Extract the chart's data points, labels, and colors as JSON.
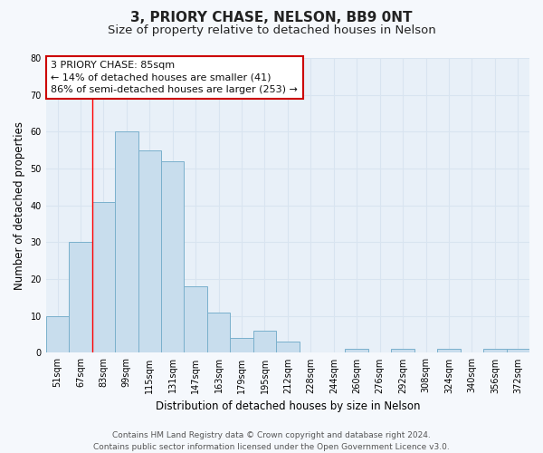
{
  "title": "3, PRIORY CHASE, NELSON, BB9 0NT",
  "subtitle": "Size of property relative to detached houses in Nelson",
  "xlabel": "Distribution of detached houses by size in Nelson",
  "ylabel": "Number of detached properties",
  "bar_labels": [
    "51sqm",
    "67sqm",
    "83sqm",
    "99sqm",
    "115sqm",
    "131sqm",
    "147sqm",
    "163sqm",
    "179sqm",
    "195sqm",
    "212sqm",
    "228sqm",
    "244sqm",
    "260sqm",
    "276sqm",
    "292sqm",
    "308sqm",
    "324sqm",
    "340sqm",
    "356sqm",
    "372sqm"
  ],
  "bar_values": [
    10,
    30,
    41,
    60,
    55,
    52,
    18,
    11,
    4,
    6,
    3,
    0,
    0,
    1,
    0,
    1,
    0,
    1,
    0,
    1,
    1
  ],
  "bar_color": "#c8dded",
  "bar_edge_color": "#7ab0cc",
  "ylim": [
    0,
    80
  ],
  "yticks": [
    0,
    10,
    20,
    30,
    40,
    50,
    60,
    70,
    80
  ],
  "annotation_box_text": "3 PRIORY CHASE: 85sqm\n← 14% of detached houses are smaller (41)\n86% of semi-detached houses are larger (253) →",
  "annotation_box_color": "#ffffff",
  "annotation_box_edge_color": "#cc0000",
  "red_line_index": 2,
  "footer_line1": "Contains HM Land Registry data © Crown copyright and database right 2024.",
  "footer_line2": "Contains public sector information licensed under the Open Government Licence v3.0.",
  "plot_bg_color": "#e8f0f8",
  "fig_bg_color": "#f5f8fc",
  "grid_color": "#d8e4f0",
  "title_fontsize": 11,
  "subtitle_fontsize": 9.5,
  "axis_label_fontsize": 8.5,
  "tick_fontsize": 7,
  "annotation_fontsize": 8,
  "footer_fontsize": 6.5
}
